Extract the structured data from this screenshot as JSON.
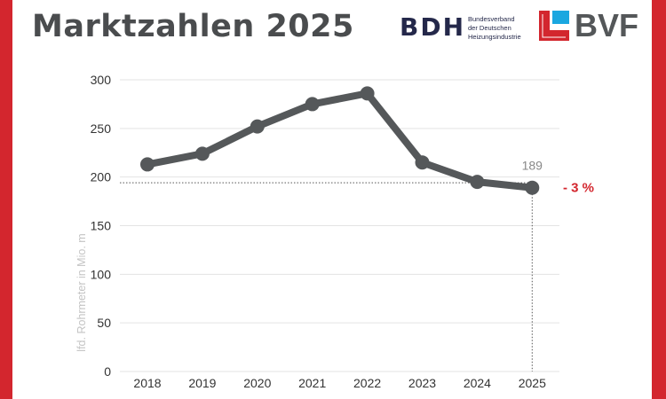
{
  "header": {
    "title": "Marktzahlen 2025",
    "bdh_logo": "BDH",
    "bdh_subtitle": [
      "Bundesverband",
      "der Deutschen",
      "Heizungsindustrie"
    ],
    "bvf_logo": "BVF"
  },
  "colors": {
    "accent": "#d3262e",
    "line": "#55585a",
    "change": "#d3262e"
  },
  "chart_data": {
    "type": "line",
    "title": "",
    "xlabel": "",
    "ylabel": "lfd. Rohrmeter in Mio. m",
    "categories": [
      "2018",
      "2019",
      "2020",
      "2021",
      "2022",
      "2023",
      "2024",
      "2025"
    ],
    "values": [
      213,
      224,
      252,
      275,
      286,
      215,
      195,
      189
    ],
    "ylim": [
      0,
      300
    ],
    "yticks": [
      "0",
      "50",
      "100",
      "150",
      "200",
      "250",
      "300"
    ],
    "grid": true,
    "annotations": {
      "last_value_label": "189",
      "change_label": "- 3 %"
    }
  }
}
